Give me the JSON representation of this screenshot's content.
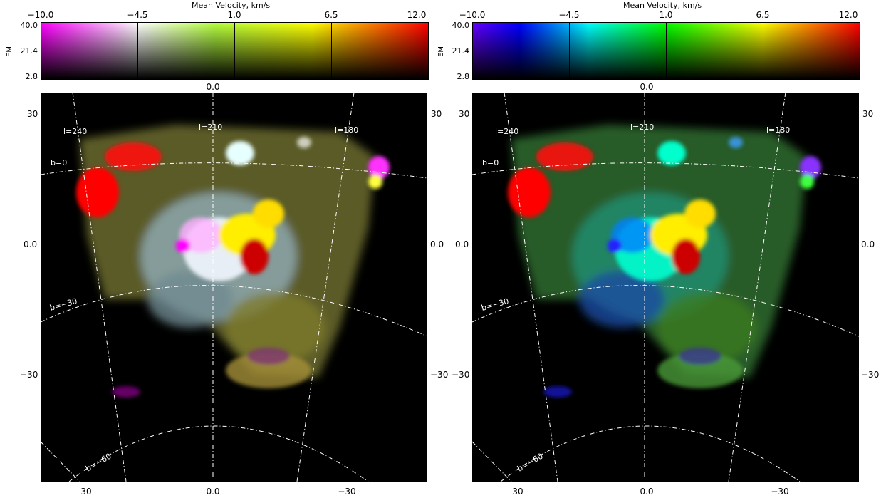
{
  "colorbar": {
    "title": "Mean Velocity, km/s",
    "ticks": [
      "−10.0",
      "−4.5",
      "1.0",
      "6.5",
      "12.0"
    ],
    "em_label": "EM",
    "em_ticks": [
      "40.0",
      "21.4",
      "2.8"
    ]
  },
  "panels": [
    {
      "id": "left",
      "palette": "magenta-white-yellow-red",
      "colors": [
        "#ff00ff",
        "#ffffff",
        "#b5ff00",
        "#ffff00",
        "#ff0000"
      ]
    },
    {
      "id": "right",
      "palette": "violet-blue-cyan-green-yellow-red",
      "colors": [
        "#6600ff",
        "#00ffff",
        "#00ff00",
        "#ffff00",
        "#ff0000"
      ]
    }
  ],
  "map": {
    "top_label": "0.0",
    "left_axis": [
      "30",
      "0.0",
      "−30"
    ],
    "right_axis": [
      "30",
      "0.0",
      "−30"
    ],
    "bottom_axis": [
      "30",
      "0.0",
      "−30"
    ],
    "grid_labels": {
      "l240": "l=240",
      "l210": "l=210",
      "l180": "l=180",
      "b0": "b=0",
      "bm30": "b=−30",
      "bm60": "b=−60"
    }
  }
}
